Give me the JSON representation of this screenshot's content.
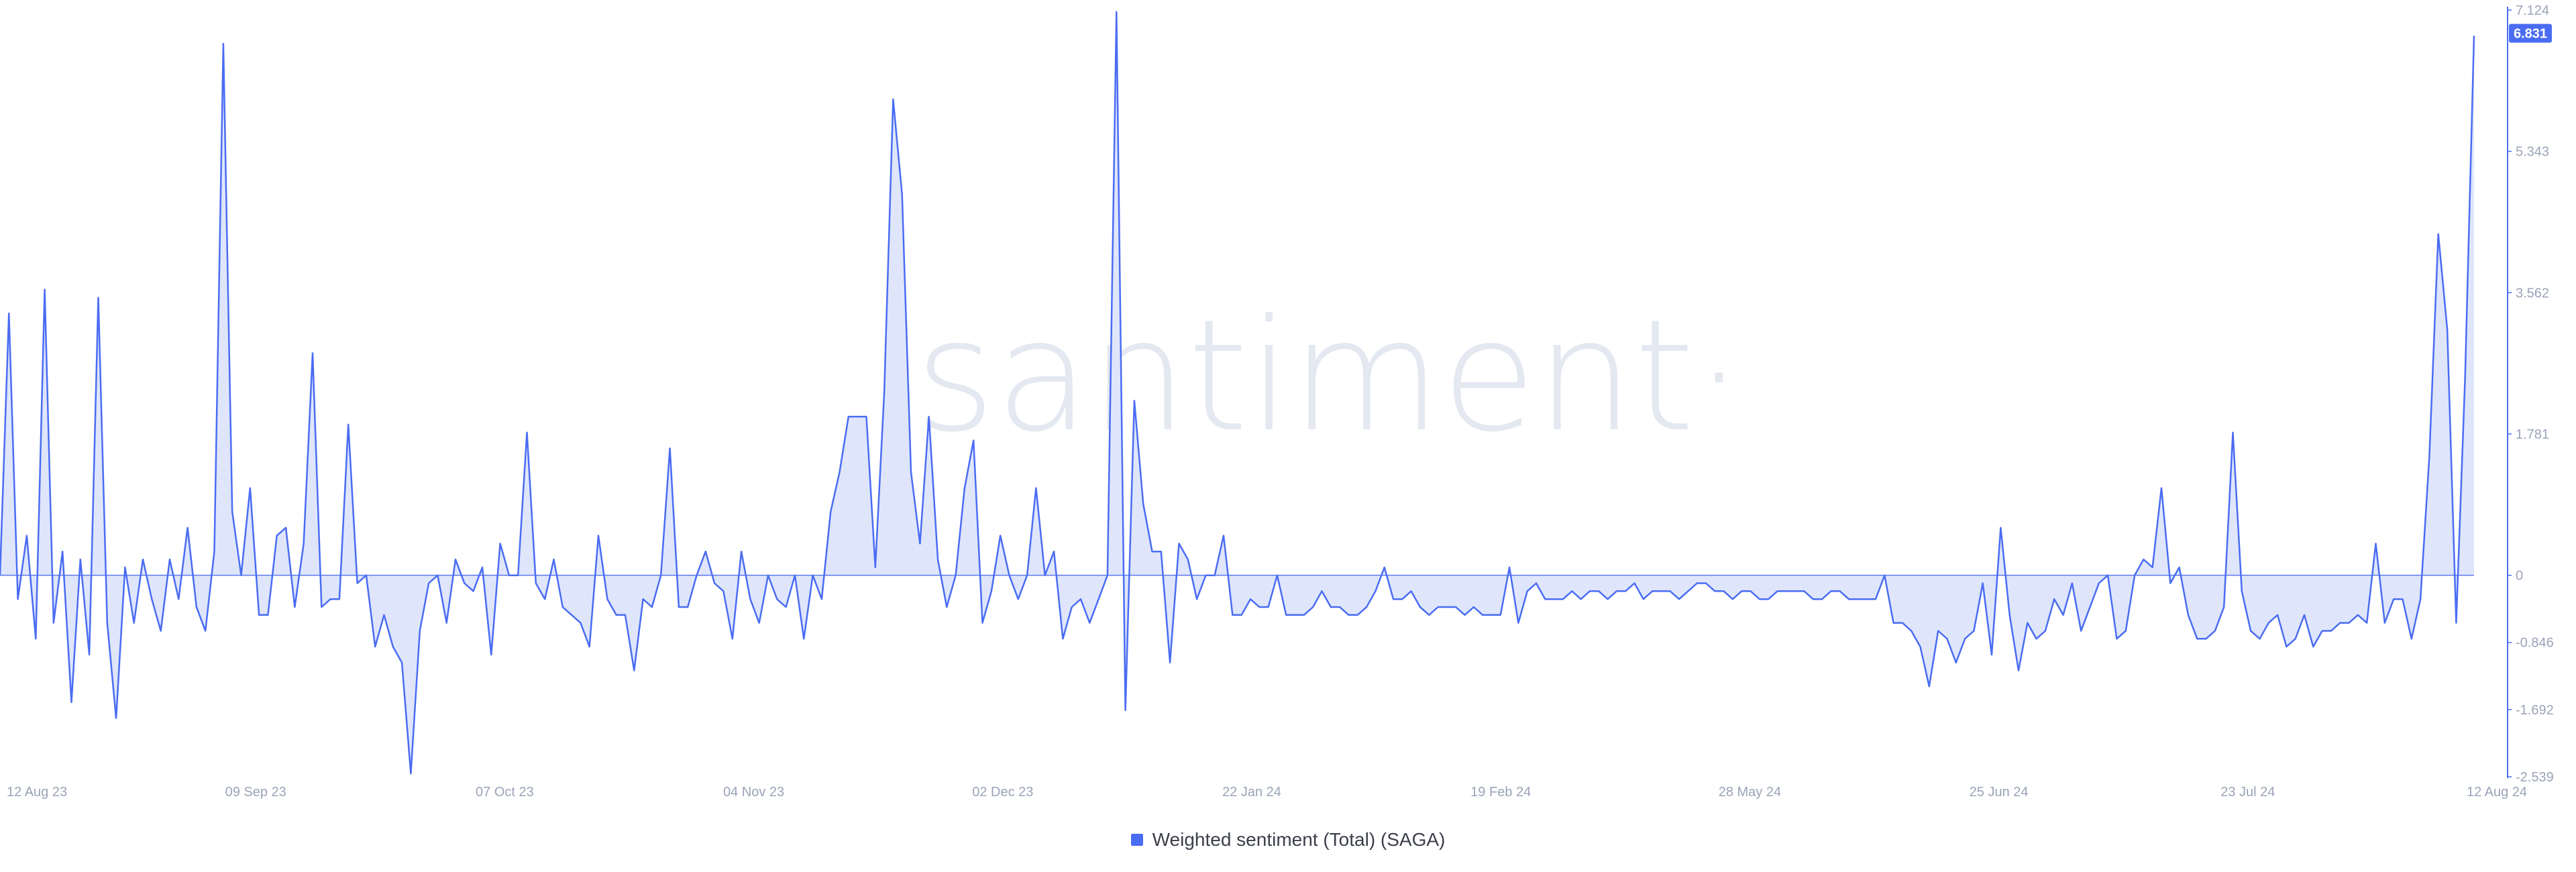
{
  "watermark": "·santiment·",
  "legend": {
    "label": "Weighted sentiment (Total) (SAGA)"
  },
  "colors": {
    "line": "#4a6cf3",
    "fill": "#dfe6fb",
    "baseline": "#5a78f0",
    "axis": "#4a6cf3",
    "badge": "#4a6cf3"
  },
  "chart_data": {
    "type": "area",
    "title": "",
    "xlabel": "",
    "ylabel": "",
    "ylim": [
      -2.539,
      7.124
    ],
    "y_ticks": [
      "7.124",
      "5.343",
      "3.562",
      "1.781",
      "0",
      "-0.846",
      "-1.692",
      "-2.539"
    ],
    "y_tick_values": [
      7.124,
      5.343,
      3.562,
      1.781,
      0,
      -0.846,
      -1.692,
      -2.539
    ],
    "x_ticks": [
      "12 Aug 23",
      "09 Sep 23",
      "07 Oct 23",
      "04 Nov 23",
      "02 Dec 23",
      "22 Jan 24",
      "19 Feb 24",
      "28 May 24",
      "25 Jun 24",
      "23 Jul 24",
      "12 Aug 24"
    ],
    "last_value_label": "6.831",
    "last_value": 6.831,
    "grid": false,
    "legend_position": "bottom-center",
    "series": [
      {
        "name": "Weighted sentiment (Total) (SAGA)",
        "values": [
          0,
          3.3,
          -0.3,
          0.5,
          -0.8,
          3.6,
          -0.6,
          0.3,
          -1.6,
          0.2,
          -1.0,
          3.5,
          -0.6,
          -1.8,
          0.1,
          -0.6,
          0.2,
          -0.3,
          -0.7,
          0.2,
          -0.3,
          0.6,
          -0.4,
          -0.7,
          0.3,
          6.7,
          0.8,
          0,
          1.1,
          -0.5,
          -0.5,
          0.5,
          0.6,
          -0.4,
          0.4,
          2.8,
          -0.4,
          -0.3,
          -0.3,
          1.9,
          -0.1,
          0,
          -0.9,
          -0.5,
          -0.9,
          -1.1,
          -2.5,
          -0.7,
          -0.1,
          0,
          -0.6,
          0.2,
          -0.1,
          -0.2,
          0.1,
          -1.0,
          0.4,
          0,
          0,
          1.8,
          -0.1,
          -0.3,
          0.2,
          -0.4,
          -0.5,
          -0.6,
          -0.9,
          0.5,
          -0.3,
          -0.5,
          -0.5,
          -1.2,
          -0.3,
          -0.4,
          0,
          1.6,
          -0.4,
          -0.4,
          0,
          0.3,
          -0.1,
          -0.2,
          -0.8,
          0.3,
          -0.3,
          -0.6,
          0,
          -0.3,
          -0.4,
          0,
          -0.8,
          0,
          -0.3,
          0.8,
          1.3,
          2.0,
          2.0,
          2.0,
          0.1,
          2.3,
          6.0,
          4.8,
          1.3,
          0.4,
          2.0,
          0.2,
          -0.4,
          0,
          1.1,
          1.7,
          -0.6,
          -0.2,
          0.5,
          0,
          -0.3,
          0,
          1.1,
          0,
          0.3,
          -0.8,
          -0.4,
          -0.3,
          -0.6,
          -0.3,
          0,
          7.1,
          -1.7,
          2.2,
          0.9,
          0.3,
          0.3,
          -1.1,
          0.4,
          0.2,
          -0.3,
          0,
          0,
          0.5,
          -0.5,
          -0.5,
          -0.3,
          -0.4,
          -0.4,
          0,
          -0.5,
          -0.5,
          -0.5,
          -0.4,
          -0.2,
          -0.4,
          -0.4,
          -0.5,
          -0.5,
          -0.4,
          -0.2,
          0.1,
          -0.3,
          -0.3,
          -0.2,
          -0.4,
          -0.5,
          -0.4,
          -0.4,
          -0.4,
          -0.5,
          -0.4,
          -0.5,
          -0.5,
          -0.5,
          0.1,
          -0.6,
          -0.2,
          -0.1,
          -0.3,
          -0.3,
          -0.3,
          -0.2,
          -0.3,
          -0.2,
          -0.2,
          -0.3,
          -0.2,
          -0.2,
          -0.1,
          -0.3,
          -0.2,
          -0.2,
          -0.2,
          -0.3,
          -0.2,
          -0.1,
          -0.1,
          -0.2,
          -0.2,
          -0.3,
          -0.2,
          -0.2,
          -0.3,
          -0.3,
          -0.2,
          -0.2,
          -0.2,
          -0.2,
          -0.3,
          -0.3,
          -0.2,
          -0.2,
          -0.3,
          -0.3,
          -0.3,
          -0.3,
          0,
          -0.6,
          -0.6,
          -0.7,
          -0.9,
          -1.4,
          -0.7,
          -0.8,
          -1.1,
          -0.8,
          -0.7,
          -0.1,
          -1.0,
          0.6,
          -0.5,
          -1.2,
          -0.6,
          -0.8,
          -0.7,
          -0.3,
          -0.5,
          -0.1,
          -0.7,
          -0.4,
          -0.1,
          0,
          -0.8,
          -0.7,
          0,
          0.2,
          0.1,
          1.1,
          -0.1,
          0.1,
          -0.5,
          -0.8,
          -0.8,
          -0.7,
          -0.4,
          1.8,
          -0.2,
          -0.7,
          -0.8,
          -0.6,
          -0.5,
          -0.9,
          -0.8,
          -0.5,
          -0.9,
          -0.7,
          -0.7,
          -0.6,
          -0.6,
          -0.5,
          -0.6,
          0.4,
          -0.6,
          -0.3,
          -0.3,
          -0.8,
          -0.3,
          1.5,
          4.3,
          3.1,
          -0.6,
          2.5,
          6.8
        ]
      }
    ]
  }
}
